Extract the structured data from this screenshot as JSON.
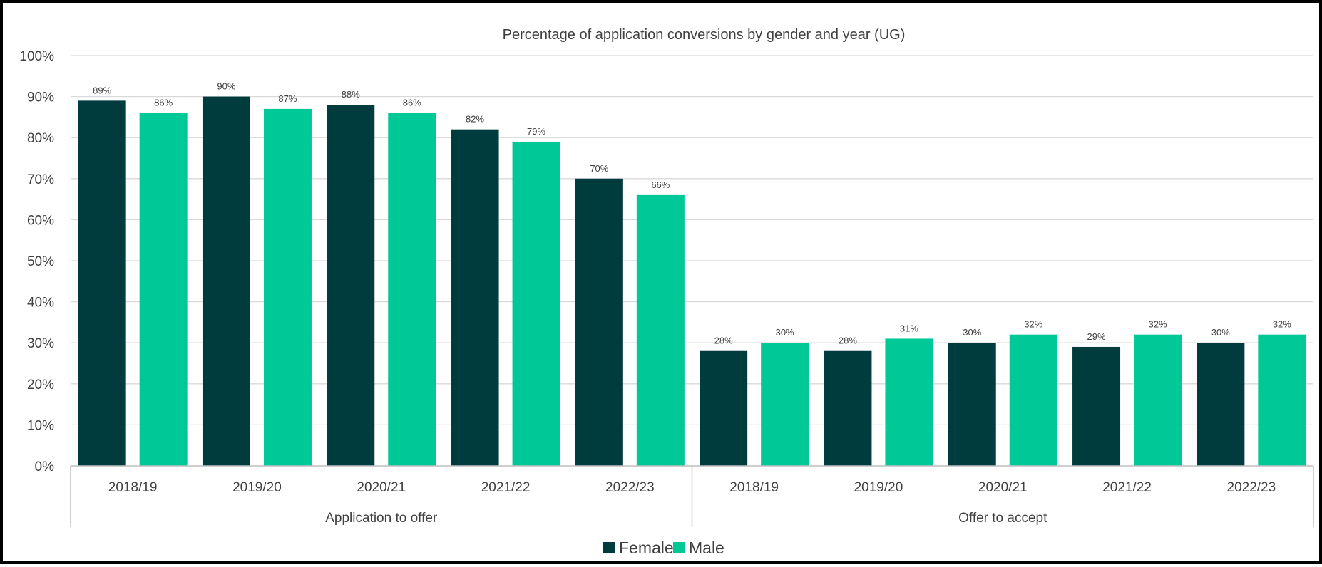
{
  "chart_data": {
    "type": "bar",
    "title": "Percentage of application conversions by gender and year (UG)",
    "ylim": [
      0,
      100
    ],
    "yticks": [
      "0%",
      "10%",
      "20%",
      "30%",
      "40%",
      "50%",
      "60%",
      "70%",
      "80%",
      "90%",
      "100%"
    ],
    "grid": true,
    "legend_position": "bottom",
    "groups": [
      {
        "label": "Application to offer",
        "categories": [
          "2018/19",
          "2019/20",
          "2020/21",
          "2021/22",
          "2022/23"
        ]
      },
      {
        "label": "Offer to accept",
        "categories": [
          "2018/19",
          "2019/20",
          "2020/21",
          "2021/22",
          "2022/23"
        ]
      }
    ],
    "series": [
      {
        "name": "Female",
        "color": "#003b3d",
        "values": [
          89,
          90,
          88,
          82,
          70,
          28,
          28,
          30,
          29,
          30
        ],
        "labels": [
          "89%",
          "90%",
          "88%",
          "82%",
          "70%",
          "28%",
          "28%",
          "30%",
          "29%",
          "30%"
        ]
      },
      {
        "name": "Male",
        "color": "#00c896",
        "values": [
          86,
          87,
          86,
          79,
          66,
          30,
          31,
          32,
          32,
          32
        ],
        "labels": [
          "86%",
          "87%",
          "86%",
          "79%",
          "66%",
          "30%",
          "31%",
          "32%",
          "32%",
          "32%"
        ]
      }
    ]
  }
}
